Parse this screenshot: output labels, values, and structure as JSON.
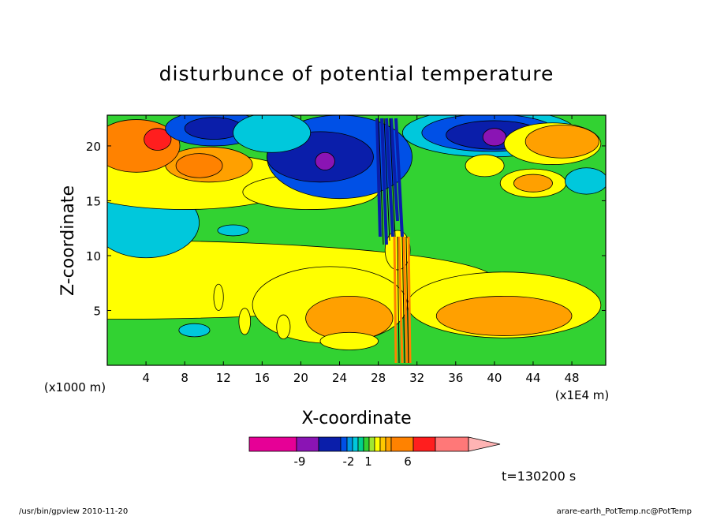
{
  "chart_data": {
    "type": "heatmap",
    "title": "disturbunce of potential temperature",
    "xlabel": "X-coordinate",
    "ylabel": "Z-coordinate",
    "x_unit_left": "(x1000 m)",
    "x_unit_right": "(x1E4 m)",
    "x_ticks": [
      4,
      8,
      12,
      16,
      20,
      24,
      28,
      32,
      36,
      40,
      44,
      48
    ],
    "y_ticks": [
      5,
      10,
      15,
      20
    ],
    "xlim": [
      0,
      51.5
    ],
    "ylim": [
      0,
      22.8
    ],
    "colorbar": {
      "label_values": [
        "-9",
        "-2",
        "1",
        "6"
      ],
      "segment_colors": [
        "#e60096",
        "#8a14b4",
        "#0a1eaa",
        "#0050e6",
        "#0096e6",
        "#00c8dc",
        "#00d28c",
        "#32d232",
        "#a0e632",
        "#ffff00",
        "#ffc800",
        "#ffa000",
        "#ff8200",
        "#ff1e1e",
        "#ff7878",
        "#ffb4b4"
      ]
    },
    "time_label": "t=130200 s",
    "field_regions": [
      {
        "level": "pos4",
        "x": 0,
        "y": 7.8,
        "rx": 40,
        "ry": 3.6
      },
      {
        "level": "pos4",
        "x": 23,
        "y": 5.5,
        "rx": 8,
        "ry": 3.5
      },
      {
        "level": "pos4",
        "x": 41,
        "y": 5.5,
        "rx": 10,
        "ry": 3
      },
      {
        "level": "pos5",
        "x": 25,
        "y": 4.3,
        "rx": 4.5,
        "ry": 2
      },
      {
        "level": "pos5",
        "x": 41,
        "y": 4.5,
        "rx": 7,
        "ry": 1.8
      },
      {
        "level": "neg2",
        "x": 4,
        "y": 13,
        "rx": 5.5,
        "ry": 3.2
      },
      {
        "level": "pos4",
        "x": 8,
        "y": 16.8,
        "rx": 12,
        "ry": 2.6
      },
      {
        "level": "pos4",
        "x": 21,
        "y": 15.8,
        "rx": 7,
        "ry": 1.6
      },
      {
        "level": "pos5",
        "x": 10.5,
        "y": 18.3,
        "rx": 4.5,
        "ry": 1.6
      },
      {
        "level": "pos6",
        "x": 3,
        "y": 20,
        "rx": 4.5,
        "ry": 2.4
      },
      {
        "level": "pos6",
        "x": 9.5,
        "y": 18.2,
        "rx": 2.4,
        "ry": 1.1
      },
      {
        "level": "pos7",
        "x": 5.2,
        "y": 20.6,
        "rx": 1.4,
        "ry": 1
      },
      {
        "level": "neg3",
        "x": 24,
        "y": 19,
        "rx": 7.5,
        "ry": 3.8
      },
      {
        "level": "neg4",
        "x": 22,
        "y": 19,
        "rx": 5.5,
        "ry": 2.3
      },
      {
        "level": "neg6",
        "x": 22.5,
        "y": 18.6,
        "rx": 1,
        "ry": 0.8
      },
      {
        "level": "neg3",
        "x": 11,
        "y": 21.6,
        "rx": 5,
        "ry": 1.6
      },
      {
        "level": "neg4",
        "x": 11,
        "y": 21.6,
        "rx": 3,
        "ry": 1
      },
      {
        "level": "neg2",
        "x": 17,
        "y": 21.2,
        "rx": 4,
        "ry": 1.8
      },
      {
        "level": "neg2",
        "x": 39.5,
        "y": 21.2,
        "rx": 9,
        "ry": 2.2
      },
      {
        "level": "neg3",
        "x": 39.5,
        "y": 21.2,
        "rx": 7,
        "ry": 1.7
      },
      {
        "level": "neg4",
        "x": 40,
        "y": 21,
        "rx": 5,
        "ry": 1.3
      },
      {
        "level": "neg6",
        "x": 40,
        "y": 20.8,
        "rx": 1.2,
        "ry": 0.8
      },
      {
        "level": "pos4",
        "x": 46,
        "y": 20.2,
        "rx": 5,
        "ry": 1.9
      },
      {
        "level": "pos5",
        "x": 47,
        "y": 20.4,
        "rx": 3.8,
        "ry": 1.5
      },
      {
        "level": "pos4",
        "x": 44,
        "y": 16.6,
        "rx": 3.4,
        "ry": 1.3
      },
      {
        "level": "pos5",
        "x": 44,
        "y": 16.6,
        "rx": 2,
        "ry": 0.8
      },
      {
        "level": "neg2",
        "x": 49.5,
        "y": 16.8,
        "rx": 2.2,
        "ry": 1.2
      },
      {
        "level": "pos4",
        "x": 39,
        "y": 18.2,
        "rx": 2,
        "ry": 1
      },
      {
        "level": "pos4",
        "x": 25,
        "y": 2.2,
        "rx": 3,
        "ry": 0.8
      },
      {
        "level": "neg2",
        "x": 9,
        "y": 3.2,
        "rx": 1.6,
        "ry": 0.6
      },
      {
        "level": "neg2",
        "x": 13,
        "y": 12.3,
        "rx": 1.6,
        "ry": 0.5
      },
      {
        "level": "pos4",
        "x": 30,
        "y": 10.5,
        "rx": 1.3,
        "ry": 1.8
      },
      {
        "level": "pos4",
        "x": 14.2,
        "y": 4,
        "rx": 0.6,
        "ry": 1.2
      },
      {
        "level": "pos4",
        "x": 11.5,
        "y": 6.2,
        "rx": 0.5,
        "ry": 1.2
      },
      {
        "level": "pos4",
        "x": 18.2,
        "y": 3.5,
        "rx": 0.7,
        "ry": 1.1
      }
    ]
  },
  "footer": {
    "left": "/usr/bin/gpview   2010-11-20",
    "right": "arare-earth_PotTemp.nc@PotTemp"
  }
}
